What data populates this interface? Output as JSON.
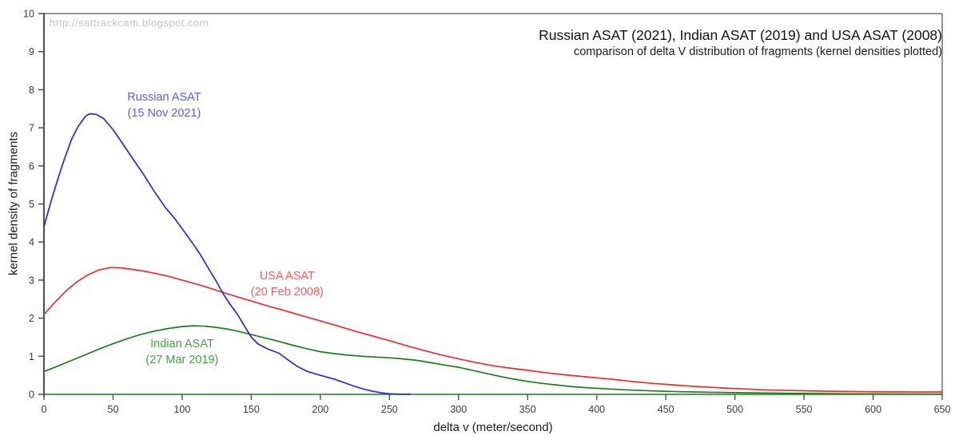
{
  "watermark": {
    "text": "http://sattrackcam.blogspot.com"
  },
  "colors": {
    "axis": "#4d4d4d",
    "frame": "#2a2a2a",
    "tick": "#5a5a5a",
    "tick_text": "#3a3a3a",
    "baseline": "#1e7d1e",
    "watermark": "#c6c6c6",
    "title_text": "#111111"
  },
  "chart_data": {
    "type": "line",
    "title": "Russian ASAT (2021), Indian ASAT (2019) and USA ASAT (2008)",
    "subtitle": "comparison of delta V distribution of fragments (kernel densities plotted)",
    "xlabel": "delta v (meter/second)",
    "ylabel": "kernel density of fragments",
    "xlim": [
      0,
      650
    ],
    "ylim": [
      0,
      10
    ],
    "x_tick_step": 50,
    "y_tick_step": 1,
    "grid": false,
    "legend": "inline curve labels",
    "baseline_color": "#1e7d1e",
    "series": [
      {
        "name": "Indian ASAT",
        "date": "27 Mar 2019",
        "label_lines": [
          "Indian ASAT",
          "(27 Mar 2019)"
        ],
        "color": "#1e7d1e",
        "label_color": "#44a044",
        "label_pos": [
          100,
          1.12
        ],
        "points": [
          [
            0,
            0.6
          ],
          [
            10,
            0.74
          ],
          [
            20,
            0.89
          ],
          [
            30,
            1.04
          ],
          [
            40,
            1.19
          ],
          [
            50,
            1.33
          ],
          [
            60,
            1.46
          ],
          [
            70,
            1.57
          ],
          [
            80,
            1.66
          ],
          [
            90,
            1.73
          ],
          [
            100,
            1.78
          ],
          [
            108,
            1.8
          ],
          [
            116,
            1.79
          ],
          [
            124,
            1.76
          ],
          [
            132,
            1.72
          ],
          [
            140,
            1.66
          ],
          [
            150,
            1.57
          ],
          [
            160,
            1.48
          ],
          [
            170,
            1.39
          ],
          [
            180,
            1.29
          ],
          [
            190,
            1.2
          ],
          [
            200,
            1.12
          ],
          [
            210,
            1.07
          ],
          [
            220,
            1.03
          ],
          [
            230,
            1.0
          ],
          [
            240,
            0.98
          ],
          [
            250,
            0.96
          ],
          [
            260,
            0.93
          ],
          [
            270,
            0.89
          ],
          [
            280,
            0.83
          ],
          [
            290,
            0.77
          ],
          [
            300,
            0.71
          ],
          [
            310,
            0.63
          ],
          [
            320,
            0.55
          ],
          [
            330,
            0.47
          ],
          [
            340,
            0.4
          ],
          [
            350,
            0.34
          ],
          [
            360,
            0.29
          ],
          [
            370,
            0.25
          ],
          [
            380,
            0.21
          ],
          [
            390,
            0.18
          ],
          [
            400,
            0.16
          ],
          [
            420,
            0.12
          ],
          [
            440,
            0.09
          ],
          [
            460,
            0.07
          ],
          [
            480,
            0.055
          ],
          [
            500,
            0.045
          ],
          [
            520,
            0.035
          ],
          [
            540,
            0.027
          ],
          [
            560,
            0.02
          ],
          [
            580,
            0.015
          ],
          [
            600,
            0.012
          ],
          [
            625,
            0.009
          ],
          [
            650,
            0.008
          ]
        ]
      },
      {
        "name": "USA ASAT",
        "date": "20 Feb 2008",
        "label_lines": [
          "USA ASAT",
          "(20 Feb 2008)"
        ],
        "color": "#e62f2f",
        "label_color": "#f06060",
        "label_pos": [
          176,
          2.9
        ],
        "points": [
          [
            0,
            2.1
          ],
          [
            8,
            2.42
          ],
          [
            16,
            2.72
          ],
          [
            24,
            2.96
          ],
          [
            32,
            3.14
          ],
          [
            40,
            3.27
          ],
          [
            48,
            3.33
          ],
          [
            56,
            3.32
          ],
          [
            64,
            3.28
          ],
          [
            72,
            3.24
          ],
          [
            80,
            3.18
          ],
          [
            90,
            3.1
          ],
          [
            100,
            3.0
          ],
          [
            110,
            2.9
          ],
          [
            120,
            2.79
          ],
          [
            130,
            2.67
          ],
          [
            140,
            2.56
          ],
          [
            150,
            2.45
          ],
          [
            162,
            2.32
          ],
          [
            175,
            2.19
          ],
          [
            187,
            2.06
          ],
          [
            200,
            1.93
          ],
          [
            212,
            1.8
          ],
          [
            225,
            1.66
          ],
          [
            237,
            1.54
          ],
          [
            250,
            1.41
          ],
          [
            262,
            1.28
          ],
          [
            275,
            1.15
          ],
          [
            287,
            1.04
          ],
          [
            300,
            0.93
          ],
          [
            312,
            0.84
          ],
          [
            325,
            0.75
          ],
          [
            337,
            0.69
          ],
          [
            350,
            0.63
          ],
          [
            365,
            0.56
          ],
          [
            380,
            0.5
          ],
          [
            395,
            0.45
          ],
          [
            410,
            0.4
          ],
          [
            425,
            0.34
          ],
          [
            440,
            0.29
          ],
          [
            455,
            0.25
          ],
          [
            470,
            0.21
          ],
          [
            485,
            0.18
          ],
          [
            500,
            0.15
          ],
          [
            520,
            0.12
          ],
          [
            540,
            0.1
          ],
          [
            560,
            0.085
          ],
          [
            580,
            0.075
          ],
          [
            600,
            0.068
          ],
          [
            620,
            0.062
          ],
          [
            635,
            0.06
          ],
          [
            650,
            0.062
          ]
        ]
      },
      {
        "name": "Russian ASAT",
        "date": "15 Nov 2021",
        "label_lines": [
          "Russian ASAT",
          "(15 Nov 2021)"
        ],
        "color": "#2a2ad0",
        "label_color": "#5d5ddf",
        "label_pos": [
          87,
          7.58
        ],
        "points": [
          [
            0,
            4.4
          ],
          [
            5,
            5.05
          ],
          [
            10,
            5.65
          ],
          [
            15,
            6.2
          ],
          [
            20,
            6.7
          ],
          [
            25,
            7.05
          ],
          [
            30,
            7.3
          ],
          [
            33,
            7.37
          ],
          [
            38,
            7.35
          ],
          [
            43,
            7.25
          ],
          [
            50,
            6.95
          ],
          [
            57,
            6.58
          ],
          [
            65,
            6.15
          ],
          [
            72,
            5.78
          ],
          [
            80,
            5.32
          ],
          [
            88,
            4.9
          ],
          [
            95,
            4.6
          ],
          [
            100,
            4.35
          ],
          [
            107,
            4.0
          ],
          [
            113,
            3.68
          ],
          [
            120,
            3.25
          ],
          [
            125,
            2.95
          ],
          [
            130,
            2.62
          ],
          [
            135,
            2.35
          ],
          [
            140,
            2.1
          ],
          [
            145,
            1.8
          ],
          [
            150,
            1.5
          ],
          [
            155,
            1.32
          ],
          [
            162,
            1.19
          ],
          [
            170,
            1.08
          ],
          [
            176,
            0.92
          ],
          [
            183,
            0.74
          ],
          [
            190,
            0.61
          ],
          [
            196,
            0.54
          ],
          [
            203,
            0.47
          ],
          [
            210,
            0.4
          ],
          [
            217,
            0.31
          ],
          [
            224,
            0.22
          ],
          [
            231,
            0.14
          ],
          [
            238,
            0.08
          ],
          [
            244,
            0.04
          ],
          [
            250,
            0.015
          ],
          [
            257,
            0.005
          ],
          [
            265,
            0.002
          ]
        ]
      }
    ]
  }
}
